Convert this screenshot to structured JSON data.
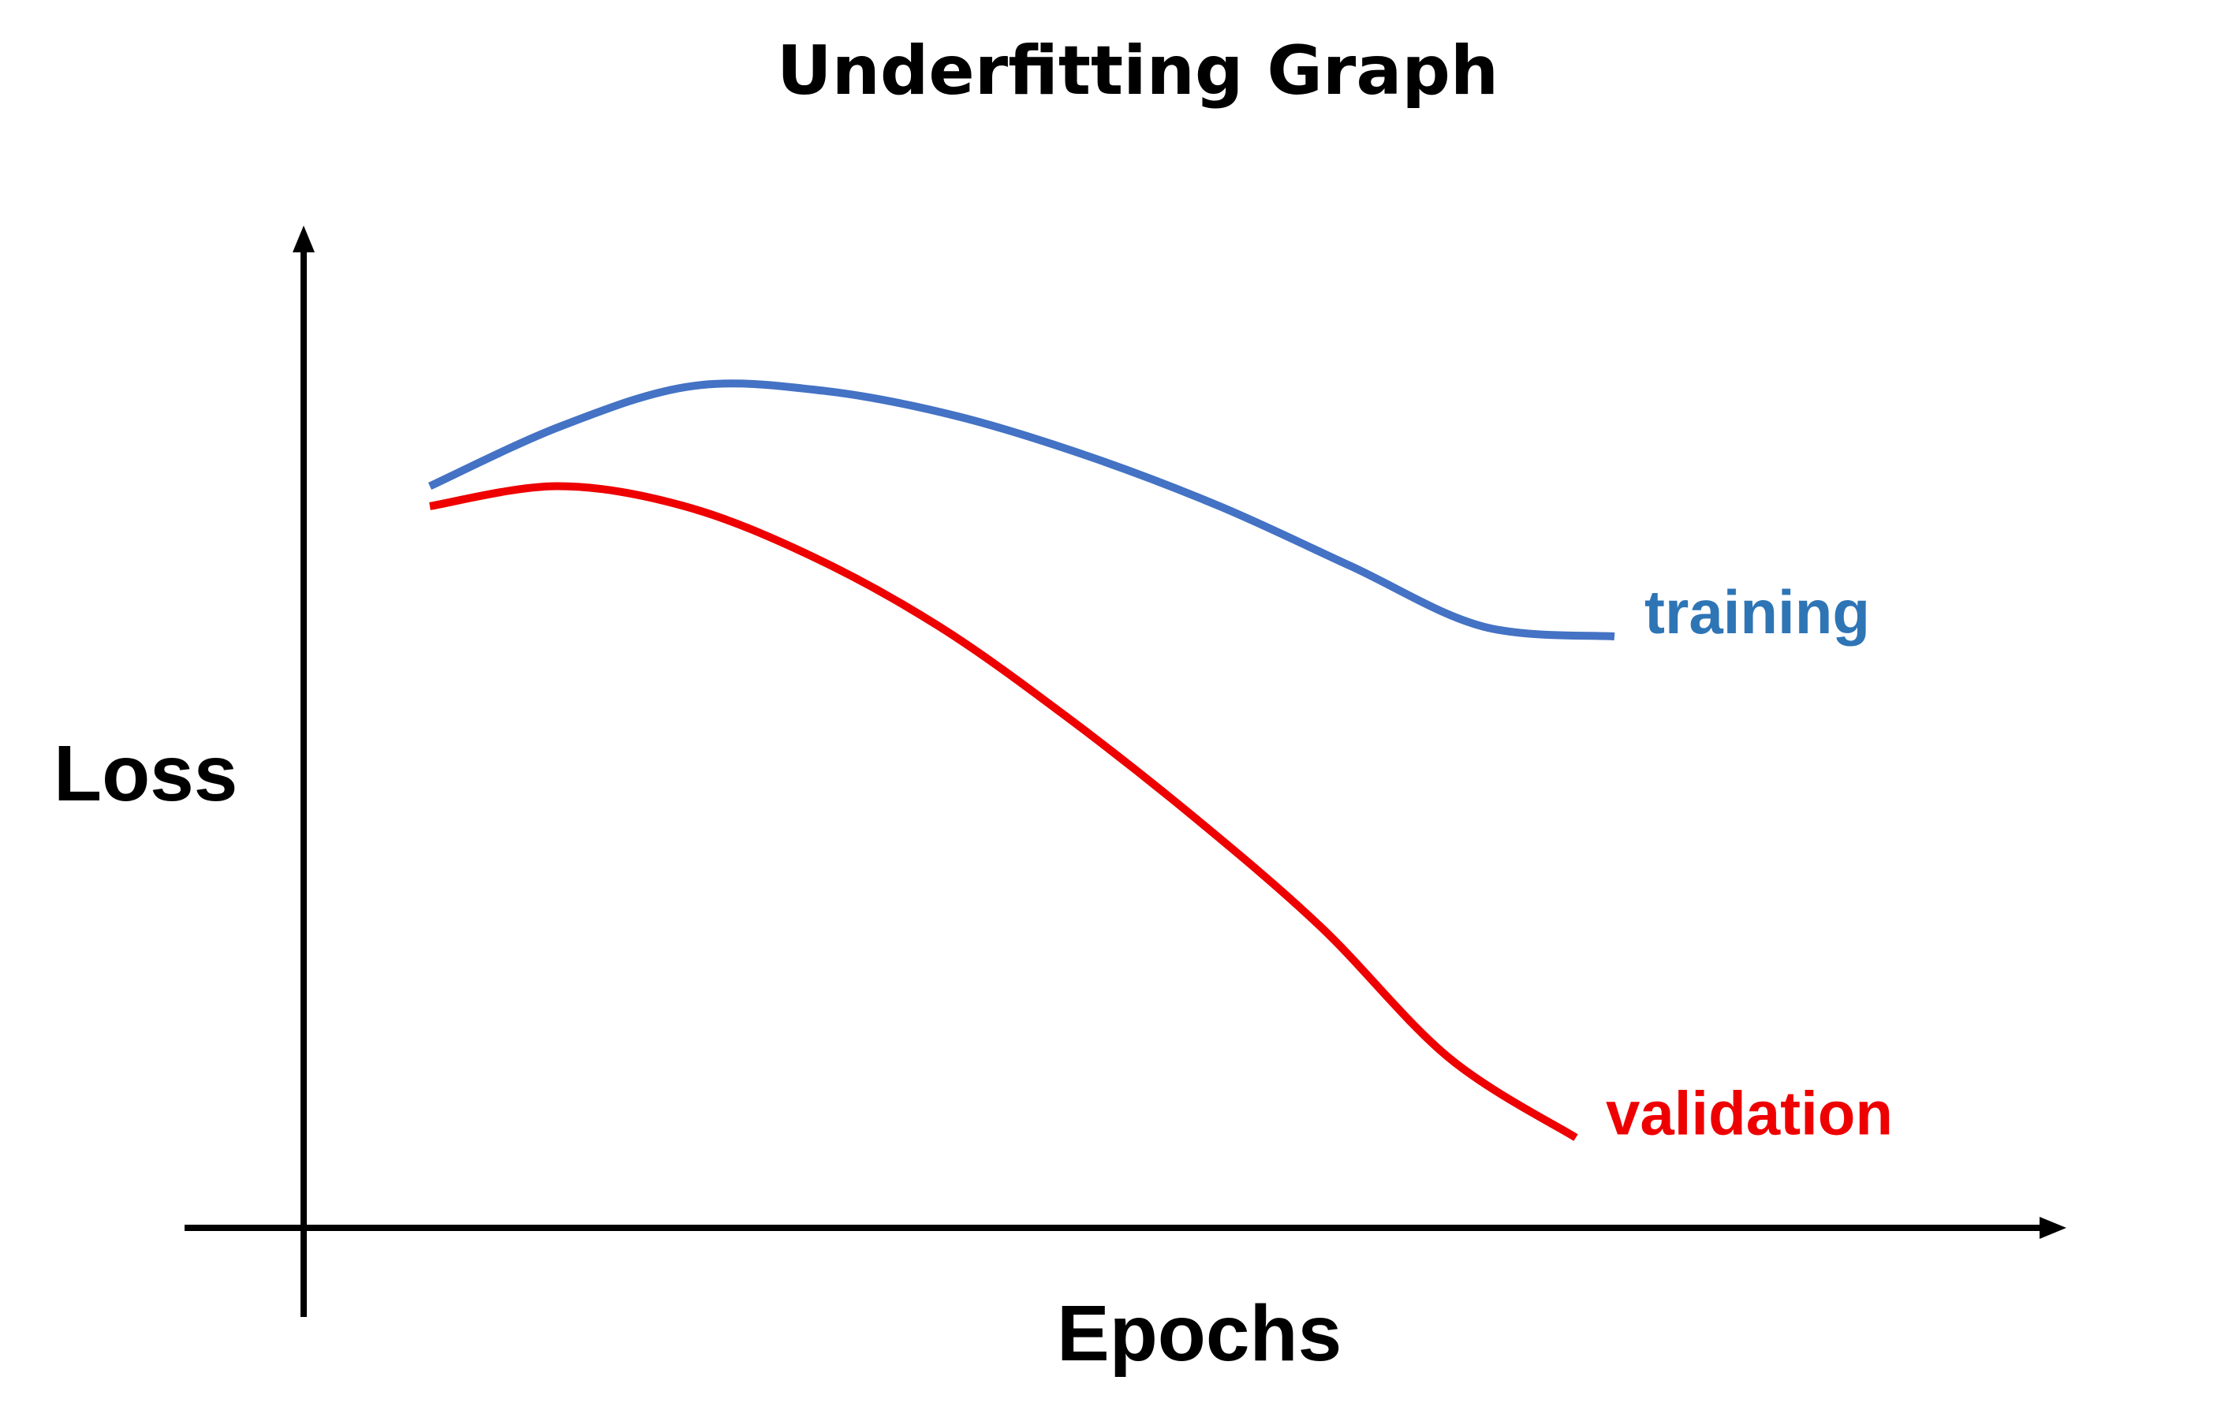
{
  "chart_data": {
    "type": "line",
    "title": "Underfitting Graph",
    "xlabel": "Epochs",
    "ylabel": "Loss",
    "xlim": [
      0,
      100
    ],
    "ylim": [
      0,
      100
    ],
    "grid": false,
    "ticks": false,
    "legend": "direct labels at line ends",
    "series": [
      {
        "name": "training",
        "color": "#4472C4",
        "label_color": "#2E75B6",
        "x": [
          10,
          20,
          30,
          40,
          50,
          60,
          70,
          80,
          90,
          100
        ],
        "values": [
          74,
          80,
          84,
          83.5,
          81,
          77,
          72,
          66,
          60,
          59
        ]
      },
      {
        "name": "validation",
        "color": "#EE0000",
        "label_color": "#EE0000",
        "x": [
          10,
          20,
          30,
          40,
          50,
          60,
          70,
          80,
          90,
          100
        ],
        "values": [
          72,
          74,
          72,
          67,
          60,
          51,
          41,
          30,
          17,
          9
        ]
      }
    ]
  }
}
